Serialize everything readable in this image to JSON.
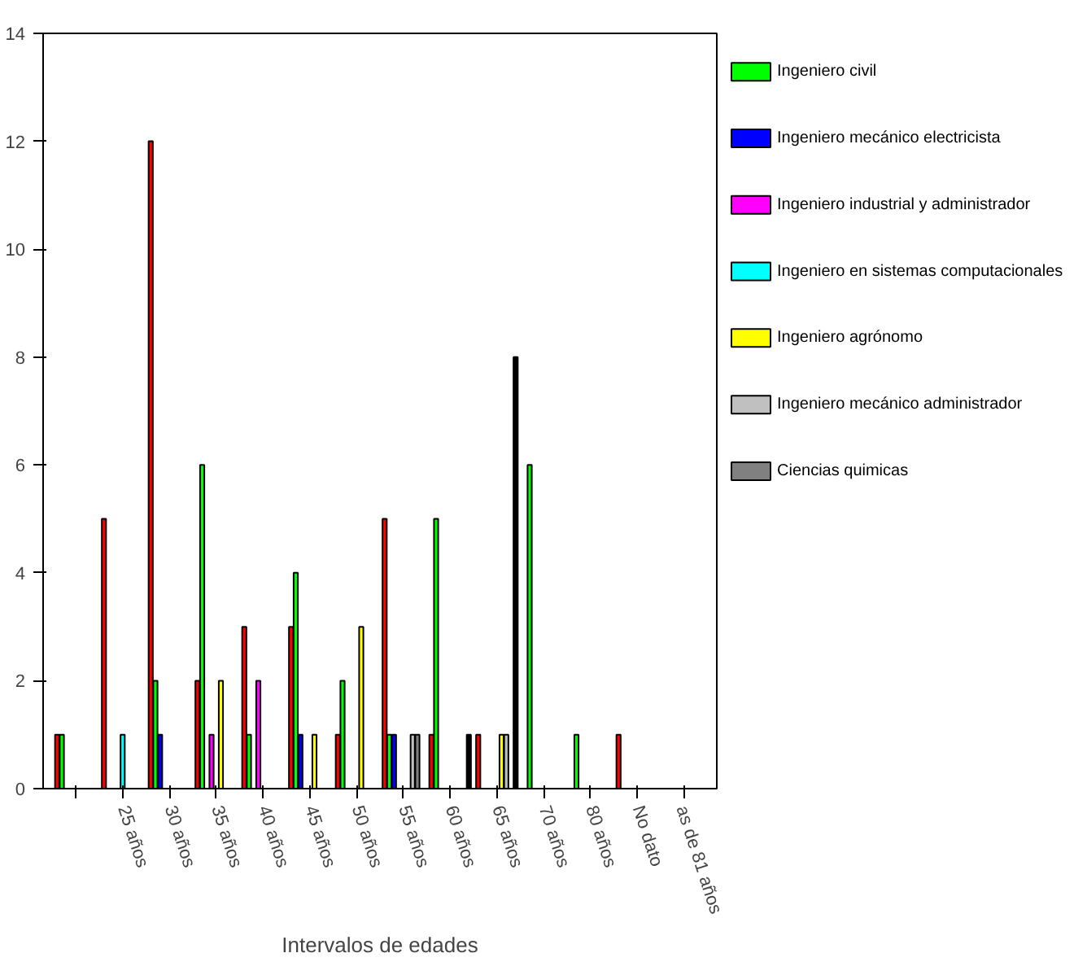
{
  "chart_data": {
    "type": "bar",
    "xlabel": "Intervalos de edades",
    "categories": [
      null,
      "25 años",
      "30 años",
      "35 años",
      "40 años",
      "45 años",
      "50 años",
      "55 años",
      "60 años",
      "65 años",
      "70 años",
      "80 años",
      "No dato",
      "as de 81 años"
    ],
    "series": [
      {
        "color": "#ff0000",
        "values": [
          1,
          5,
          12,
          2,
          3,
          3,
          1,
          5,
          1,
          1,
          null,
          null,
          1,
          null
        ]
      },
      {
        "name": "Ingeniero civil",
        "color": "#00ff00",
        "values": [
          1,
          null,
          2,
          6,
          1,
          4,
          2,
          1,
          5,
          null,
          6,
          1,
          null,
          null
        ]
      },
      {
        "name": "Ingeniero mecánico electricista",
        "color": "#0000ff",
        "values": [
          null,
          null,
          1,
          null,
          null,
          1,
          null,
          1,
          null,
          null,
          null,
          null,
          null,
          null
        ]
      },
      {
        "name": "Ingeniero industrial y administrador",
        "color": "#ff00ff",
        "values": [
          null,
          null,
          null,
          1,
          2,
          null,
          null,
          null,
          null,
          null,
          null,
          null,
          null,
          null
        ]
      },
      {
        "name": "Ingeniero en sistemas computacionales",
        "color": "#00ffff",
        "values": [
          null,
          1,
          null,
          null,
          null,
          null,
          null,
          null,
          null,
          null,
          null,
          null,
          null,
          null
        ]
      },
      {
        "name": "Ingeniero agrónomo",
        "color": "#ffff00",
        "values": [
          null,
          null,
          null,
          2,
          null,
          1,
          3,
          null,
          null,
          1,
          null,
          null,
          null,
          null
        ]
      },
      {
        "name": "Ingeniero mecánico administrador",
        "color": "#c0c0c0",
        "values": [
          null,
          null,
          null,
          null,
          null,
          null,
          null,
          1,
          null,
          1,
          null,
          null,
          null,
          null
        ]
      },
      {
        "name": "Ciencias quimicas",
        "color": "#808080",
        "values": [
          null,
          null,
          null,
          null,
          null,
          null,
          null,
          1,
          null,
          null,
          null,
          null,
          null,
          null
        ]
      },
      {
        "color": "#000000",
        "values": [
          null,
          null,
          null,
          null,
          null,
          null,
          null,
          null,
          1,
          8,
          null,
          null,
          null,
          null
        ]
      }
    ],
    "ylim": [
      0,
      14
    ],
    "yticks": [
      0,
      2,
      4,
      6,
      8,
      10,
      12,
      14
    ],
    "legend": "right"
  }
}
